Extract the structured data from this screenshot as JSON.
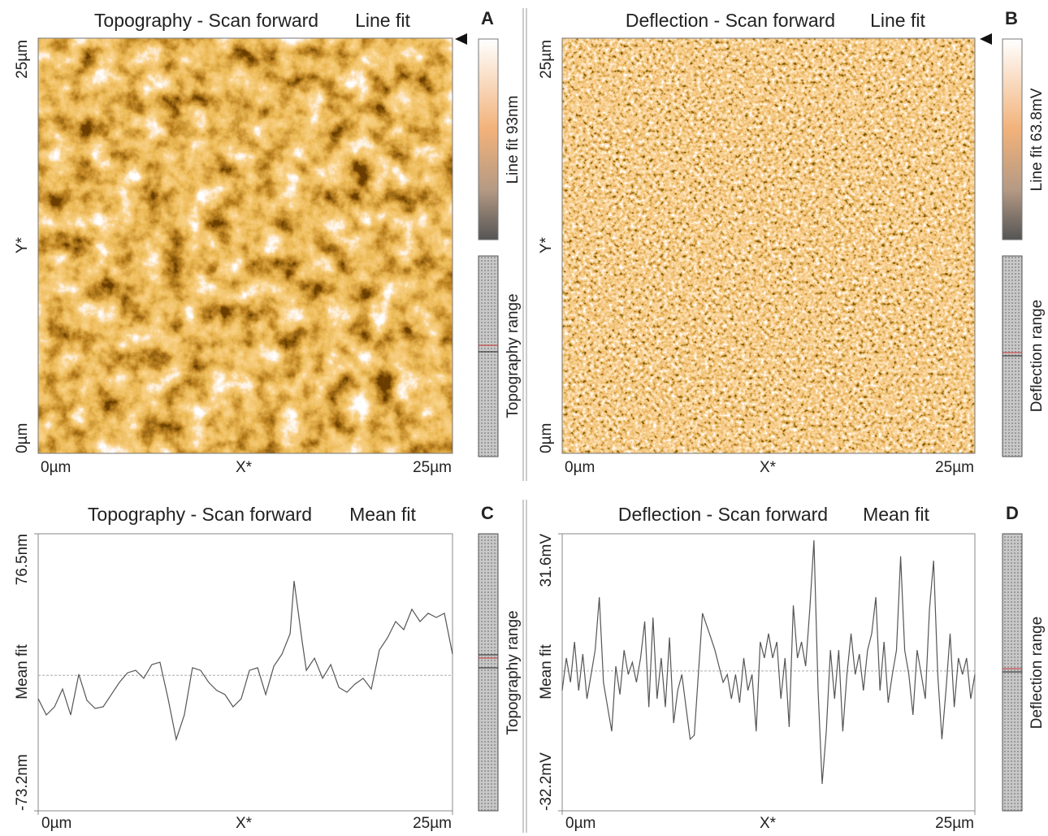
{
  "images": [
    {
      "letter": "A",
      "title": "Topography - Scan forward",
      "fit": "Line fit",
      "x_label": "X*",
      "y_label": "Y*",
      "xticks": [
        "0µm",
        "25µm"
      ],
      "yticks": [
        "0µm",
        "25µm"
      ],
      "colorbar_label": "Line fit 93nm",
      "range_label": "Topography range"
    },
    {
      "letter": "B",
      "title": "Deflection - Scan forward",
      "fit": "Line fit",
      "x_label": "X*",
      "y_label": "Y*",
      "xticks": [
        "0µm",
        "25µm"
      ],
      "yticks": [
        "0µm",
        "25µm"
      ],
      "colorbar_label": "Line fit 63.8mV",
      "range_label": "Deflection range"
    }
  ],
  "chart_data": [
    {
      "type": "line",
      "letter": "C",
      "title": "Topography - Scan forward",
      "fit": "Mean fit",
      "xlabel": "X*",
      "ylabel": "Mean fit",
      "range_label": "Topography range",
      "color": "#555555",
      "zero_line": true,
      "xlim": [
        0,
        25
      ],
      "xticks": [
        {
          "value": 0,
          "label": "0µm"
        },
        {
          "value": 25,
          "label": "25µm"
        }
      ],
      "ylim": [
        -73.2,
        76.5
      ],
      "yticks": [
        {
          "value": -73.2,
          "label": "-73.2nm"
        },
        {
          "value": 76.5,
          "label": "76.5nm"
        }
      ],
      "x": [
        0,
        0.49,
        0.98,
        1.47,
        1.96,
        2.45,
        2.94,
        3.43,
        3.92,
        4.41,
        4.9,
        5.39,
        5.88,
        6.37,
        6.86,
        7.35,
        7.84,
        8.33,
        8.82,
        9.31,
        9.8,
        10.29,
        10.78,
        11.27,
        11.76,
        12.25,
        12.75,
        13.24,
        13.73,
        14.22,
        14.71,
        15.2,
        15.44,
        15.93,
        16.18,
        16.67,
        17.16,
        17.65,
        18.14,
        18.63,
        19.12,
        19.61,
        20.1,
        20.59,
        21.08,
        21.57,
        22.06,
        22.55,
        23.04,
        23.53,
        24.02,
        24.51,
        25
      ],
      "values": [
        -12.6,
        -21.4,
        -17.1,
        -7.4,
        -21.4,
        0.6,
        -13.5,
        -17.9,
        -17,
        -10.4,
        -3.8,
        1.4,
        2.7,
        -1.6,
        5.8,
        7.1,
        -12.6,
        -34.6,
        -21.4,
        4.1,
        2.7,
        -3.8,
        -8.2,
        -10.4,
        -17,
        -12.6,
        2.7,
        4.1,
        -10.4,
        5,
        11.5,
        22.5,
        51,
        18.1,
        2.7,
        9.3,
        -1.6,
        5.8,
        -6.5,
        -9.1,
        -4.7,
        -1.6,
        -7.4,
        13.7,
        20.3,
        29.1,
        24.7,
        35.7,
        29.1,
        33.5,
        31.3,
        33.5,
        11.5
      ]
    },
    {
      "type": "line",
      "letter": "D",
      "title": "Deflection - Scan forward",
      "fit": "Mean fit",
      "xlabel": "X*",
      "ylabel": "Mean fit",
      "range_label": "Deflection range",
      "color": "#555555",
      "zero_line": true,
      "xlim": [
        0,
        25
      ],
      "xticks": [
        {
          "value": 0,
          "label": "0µm"
        },
        {
          "value": 25,
          "label": "25µm"
        }
      ],
      "ylim": [
        -32.2,
        31.6
      ],
      "yticks": [
        {
          "value": -32.2,
          "label": "-32.2mV"
        },
        {
          "value": 31.6,
          "label": "31.6mV"
        }
      ],
      "x": [
        0,
        0.25,
        0.5,
        0.75,
        1,
        1.25,
        1.5,
        1.75,
        2,
        2.25,
        2.5,
        2.75,
        3,
        3.25,
        3.5,
        3.75,
        4,
        4.25,
        4.5,
        4.75,
        5,
        5.25,
        5.5,
        5.75,
        6,
        6.25,
        6.5,
        6.75,
        7,
        7.25,
        7.5,
        7.75,
        8,
        8.25,
        8.5,
        8.75,
        9,
        9.25,
        9.5,
        9.75,
        10,
        10.25,
        10.5,
        10.75,
        11,
        11.25,
        11.5,
        11.75,
        12,
        12.25,
        12.5,
        12.75,
        13,
        13.25,
        13.5,
        13.75,
        14,
        14.25,
        14.5,
        14.75,
        15,
        15.25,
        15.5,
        15.75,
        16,
        16.25,
        16.5,
        16.75,
        17,
        17.25,
        17.5,
        17.75,
        18,
        18.25,
        18.5,
        18.75,
        19,
        19.25,
        19.5,
        19.75,
        20,
        20.25,
        20.5,
        20.75,
        21,
        21.25,
        21.5,
        21.75,
        22,
        22.25,
        22.5,
        22.75,
        23,
        23.25,
        23.5,
        23.75,
        24,
        24.25,
        24.5,
        24.75,
        25
      ],
      "values": [
        -4.5,
        3,
        -2.6,
        6.7,
        -4.5,
        3.9,
        -6.4,
        -0.8,
        4.8,
        17,
        -2.6,
        -8.3,
        -13.9,
        1.1,
        -5.4,
        4.8,
        -0.8,
        2,
        -2.6,
        3,
        11.4,
        -8.3,
        12.3,
        -6.4,
        3,
        -8.3,
        7.7,
        -12,
        -4.5,
        -0.8,
        -8.3,
        -15.7,
        -14.8,
        -0.8,
        13.3,
        10.5,
        7.7,
        4.8,
        1.1,
        -2.6,
        -0.8,
        -6.4,
        -0.8,
        -7.3,
        3,
        -4.5,
        -0.8,
        -13.9,
        6.7,
        3,
        8.6,
        3,
        6.7,
        -6.4,
        3,
        -12.9,
        15.1,
        3,
        6.7,
        1.1,
        14.2,
        30.1,
        -4.5,
        -26,
        -13.9,
        4.8,
        -6.4,
        4.8,
        -13.9,
        -0.8,
        8.6,
        -0.8,
        3.9,
        -4.5,
        4.8,
        8.6,
        17,
        -4.5,
        6.7,
        -7.3,
        -0.8,
        4.8,
        26.4,
        4.8,
        -0.8,
        -10.1,
        4.8,
        -0.8,
        -6.4,
        14.2,
        25.4,
        -0.8,
        -15.7,
        -4.5,
        8.6,
        -8.3,
        3,
        -0.8,
        3,
        -6.4,
        -0.8
      ]
    }
  ]
}
